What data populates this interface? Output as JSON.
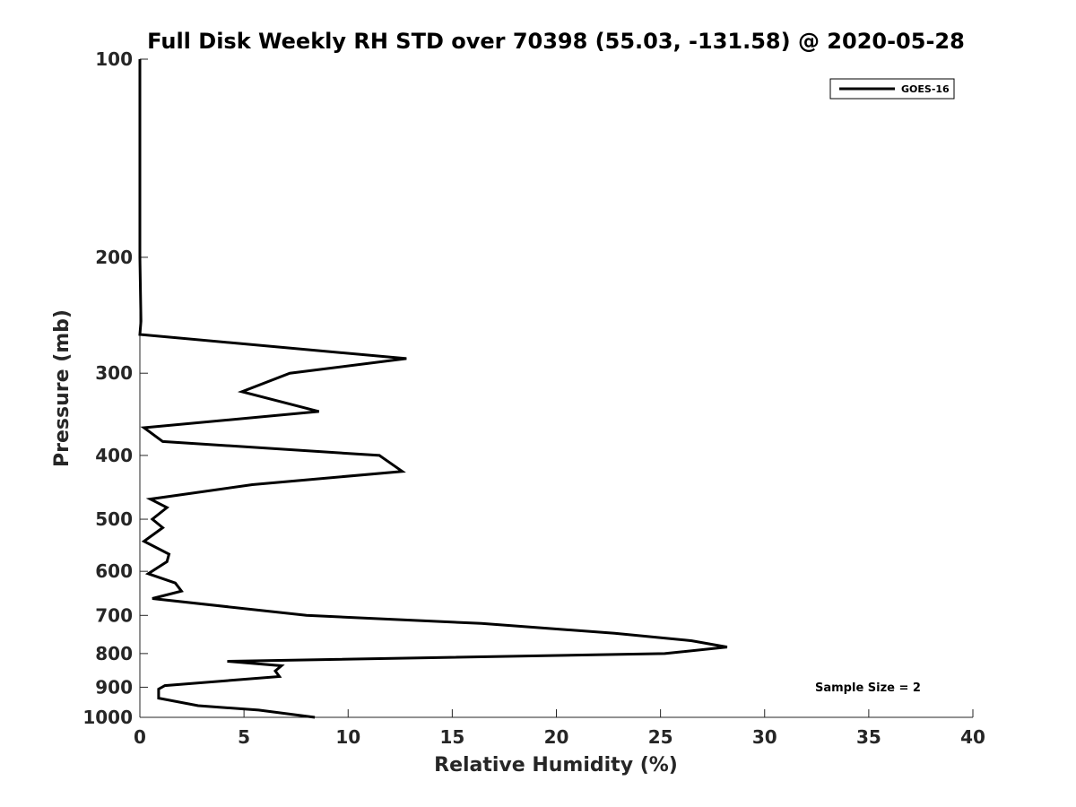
{
  "chart_data": {
    "type": "line",
    "title": "Full Disk Weekly RH STD over 70398 (55.03, -131.58) @ 2020-05-28",
    "xlabel": "Relative Humidity (%)",
    "ylabel": "Pressure (mb)",
    "xlim": [
      0,
      40
    ],
    "ylim": [
      100,
      1000
    ],
    "y_scale": "log",
    "y_reversed": true,
    "grid": false,
    "x_ticks": [
      "0",
      "5",
      "10",
      "15",
      "20",
      "25",
      "30",
      "35",
      "40"
    ],
    "y_ticks": [
      "100",
      "200",
      "300",
      "400",
      "500",
      "600",
      "700",
      "800",
      "900",
      "1000"
    ],
    "legend_position": "top-right",
    "annotation": "Sample Size = 2",
    "series": [
      {
        "name": "GOES-16",
        "color": "#000000",
        "points": [
          [
            0,
            100
          ],
          [
            0,
            150
          ],
          [
            0,
            200
          ],
          [
            0.05,
            250
          ],
          [
            0,
            262
          ],
          [
            12.8,
            285
          ],
          [
            7.2,
            300
          ],
          [
            4.9,
            320
          ],
          [
            8.6,
            343
          ],
          [
            0.2,
            363
          ],
          [
            1.1,
            381
          ],
          [
            11.5,
            400
          ],
          [
            12.6,
            423
          ],
          [
            5.4,
            443
          ],
          [
            0.5,
            466
          ],
          [
            1.3,
            480
          ],
          [
            0.6,
            500
          ],
          [
            1.1,
            515
          ],
          [
            0.2,
            540
          ],
          [
            1.4,
            565
          ],
          [
            1.3,
            580
          ],
          [
            0.4,
            605
          ],
          [
            1.7,
            625
          ],
          [
            2.0,
            643
          ],
          [
            0.6,
            660
          ],
          [
            8.0,
            700
          ],
          [
            16.4,
            720
          ],
          [
            22.8,
            745
          ],
          [
            26.5,
            765
          ],
          [
            28.2,
            782
          ],
          [
            25.2,
            800
          ],
          [
            4.2,
            822
          ],
          [
            6.8,
            835
          ],
          [
            6.5,
            850
          ],
          [
            6.7,
            867
          ],
          [
            1.2,
            895
          ],
          [
            0.9,
            906
          ],
          [
            0.9,
            935
          ],
          [
            2.8,
            960
          ],
          [
            5.7,
            975
          ],
          [
            8.4,
            1000
          ]
        ]
      }
    ]
  }
}
